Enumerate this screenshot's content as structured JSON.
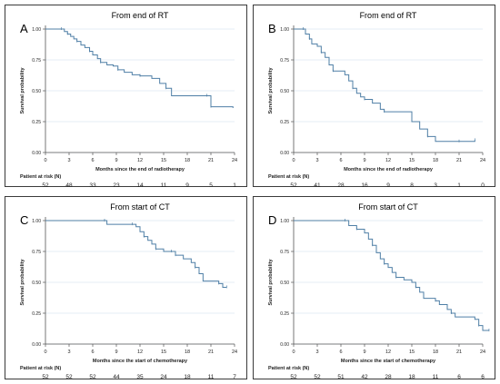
{
  "colors": {
    "line": "#4f7fa6",
    "grid": "#dce9f2",
    "axis": "#555555",
    "frame": "#3a3a3a"
  },
  "chart_data": [
    {
      "panel": "A",
      "type": "line",
      "title": "From end of RT",
      "xlabel": "Months since the end of radiotherapy",
      "ylabel": "Survival probability",
      "xlim": [
        0,
        24
      ],
      "ylim": [
        0,
        1
      ],
      "xticks": [
        0,
        3,
        6,
        9,
        12,
        15,
        18,
        21,
        24
      ],
      "yticks": [
        "0.00",
        "0.25",
        "0.50",
        "0.75",
        "1.00"
      ],
      "grid": "horizontal",
      "risk_label": "Patient at risk (N)",
      "risk_counts": [
        "52",
        "48",
        "33",
        "23",
        "14",
        "11",
        "9",
        "5",
        "1"
      ],
      "series": [
        {
          "step": true,
          "points": [
            [
              0,
              1.0
            ],
            [
              2,
              1.0
            ],
            [
              2.4,
              0.98
            ],
            [
              2.8,
              0.96
            ],
            [
              3.2,
              0.94
            ],
            [
              3.6,
              0.92
            ],
            [
              4,
              0.9
            ],
            [
              4.5,
              0.87
            ],
            [
              5,
              0.85
            ],
            [
              5.6,
              0.82
            ],
            [
              6,
              0.79
            ],
            [
              6.6,
              0.76
            ],
            [
              7,
              0.73
            ],
            [
              7.8,
              0.71
            ],
            [
              8.6,
              0.7
            ],
            [
              9.2,
              0.67
            ],
            [
              10,
              0.65
            ],
            [
              11,
              0.63
            ],
            [
              12,
              0.62
            ],
            [
              13.5,
              0.6
            ],
            [
              14.5,
              0.56
            ],
            [
              15.3,
              0.52
            ],
            [
              16,
              0.46
            ],
            [
              20.5,
              0.46
            ],
            [
              21,
              0.37
            ],
            [
              23.8,
              0.36
            ]
          ]
        }
      ]
    },
    {
      "panel": "B",
      "type": "line",
      "title": "From end of RT",
      "xlabel": "Months since the end of radiotherapy",
      "ylabel": "Survival probability",
      "xlim": [
        0,
        24
      ],
      "ylim": [
        0,
        1
      ],
      "xticks": [
        0,
        3,
        6,
        9,
        12,
        15,
        18,
        21,
        24
      ],
      "yticks": [
        "0.00",
        "0.25",
        "0.50",
        "0.75",
        "1.00"
      ],
      "grid": "horizontal",
      "risk_label": "Patient at risk (N)",
      "risk_counts": [
        "52",
        "41",
        "28",
        "16",
        "9",
        "8",
        "3",
        "1",
        "0"
      ],
      "series": [
        {
          "step": true,
          "points": [
            [
              0,
              1.0
            ],
            [
              1.2,
              1.0
            ],
            [
              1.5,
              0.96
            ],
            [
              2,
              0.92
            ],
            [
              2.3,
              0.88
            ],
            [
              3,
              0.86
            ],
            [
              3.5,
              0.81
            ],
            [
              4,
              0.77
            ],
            [
              4.5,
              0.71
            ],
            [
              5,
              0.66
            ],
            [
              6.5,
              0.63
            ],
            [
              7,
              0.58
            ],
            [
              7.5,
              0.52
            ],
            [
              8,
              0.48
            ],
            [
              8.5,
              0.45
            ],
            [
              9,
              0.43
            ],
            [
              10,
              0.4
            ],
            [
              11,
              0.35
            ],
            [
              11.5,
              0.33
            ],
            [
              15,
              0.25
            ],
            [
              16,
              0.19
            ],
            [
              17,
              0.13
            ],
            [
              18,
              0.09
            ],
            [
              21,
              0.09
            ],
            [
              23,
              0.1
            ]
          ]
        }
      ]
    },
    {
      "panel": "C",
      "type": "line",
      "title": "From start of CT",
      "xlabel": "Months since the start of chemotherapy",
      "ylabel": "Survival probability",
      "xlim": [
        0,
        24
      ],
      "ylim": [
        0,
        1
      ],
      "xticks": [
        0,
        3,
        6,
        9,
        12,
        15,
        18,
        21,
        24
      ],
      "yticks": [
        "0.00",
        "0.25",
        "0.50",
        "0.75",
        "1.00"
      ],
      "grid": "horizontal",
      "risk_label": "Patient at risk (N)",
      "risk_counts": [
        "52",
        "52",
        "52",
        "44",
        "35",
        "24",
        "18",
        "11",
        "7"
      ],
      "series": [
        {
          "step": true,
          "points": [
            [
              0,
              1.0
            ],
            [
              7.5,
              1.0
            ],
            [
              7.8,
              0.97
            ],
            [
              11,
              0.97
            ],
            [
              11.5,
              0.95
            ],
            [
              12,
              0.91
            ],
            [
              12.5,
              0.87
            ],
            [
              13,
              0.84
            ],
            [
              13.5,
              0.81
            ],
            [
              14,
              0.77
            ],
            [
              15,
              0.75
            ],
            [
              16,
              0.75
            ],
            [
              16.5,
              0.72
            ],
            [
              17.5,
              0.69
            ],
            [
              18.5,
              0.66
            ],
            [
              19,
              0.62
            ],
            [
              19.5,
              0.57
            ],
            [
              20,
              0.51
            ],
            [
              22,
              0.49
            ],
            [
              22.5,
              0.46
            ],
            [
              23,
              0.46
            ]
          ]
        }
      ]
    },
    {
      "panel": "D",
      "type": "line",
      "title": "From start of CT",
      "xlabel": "Months since the start of chemotherapy",
      "ylabel": "Survival probability",
      "xlim": [
        0,
        24
      ],
      "ylim": [
        0,
        1
      ],
      "xticks": [
        0,
        3,
        6,
        9,
        12,
        15,
        18,
        21,
        24
      ],
      "yticks": [
        "0.00",
        "0.25",
        "0.50",
        "0.75",
        "1.00"
      ],
      "grid": "horizontal",
      "risk_label": "Patient at risk (N)",
      "risk_counts": [
        "52",
        "52",
        "51",
        "42",
        "28",
        "18",
        "11",
        "6",
        "6"
      ],
      "series": [
        {
          "step": true,
          "points": [
            [
              0,
              1.0
            ],
            [
              6.5,
              1.0
            ],
            [
              7,
              0.96
            ],
            [
              8,
              0.93
            ],
            [
              9,
              0.9
            ],
            [
              9.5,
              0.85
            ],
            [
              10,
              0.8
            ],
            [
              10.5,
              0.74
            ],
            [
              11,
              0.69
            ],
            [
              11.5,
              0.65
            ],
            [
              12,
              0.62
            ],
            [
              12.5,
              0.58
            ],
            [
              13,
              0.54
            ],
            [
              14,
              0.52
            ],
            [
              15,
              0.5
            ],
            [
              15.5,
              0.46
            ],
            [
              16,
              0.42
            ],
            [
              16.5,
              0.37
            ],
            [
              18,
              0.35
            ],
            [
              18.5,
              0.32
            ],
            [
              19.5,
              0.28
            ],
            [
              20,
              0.25
            ],
            [
              20.5,
              0.22
            ],
            [
              23,
              0.2
            ],
            [
              23.5,
              0.15
            ],
            [
              24,
              0.11
            ],
            [
              24.8,
              0.11
            ]
          ]
        }
      ]
    }
  ]
}
